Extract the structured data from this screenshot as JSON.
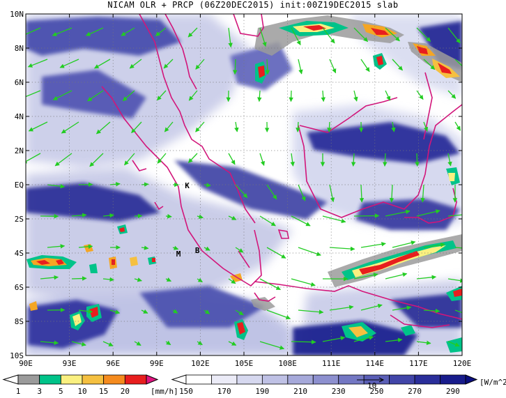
{
  "title": "NICAM OLR + PRCP (06Z20DEC2015) init:00Z19DEC2015 slab",
  "map": {
    "lon_range": [
      90,
      120
    ],
    "lat_range": [
      -10,
      10
    ],
    "x_ticks": [
      "90E",
      "93E",
      "96E",
      "99E",
      "102E",
      "105E",
      "108E",
      "111E",
      "114E",
      "117E",
      "120E"
    ],
    "y_ticks": [
      "10N",
      "8N",
      "6N",
      "4N",
      "2N",
      "EQ",
      "2S",
      "4S",
      "6S",
      "8S",
      "10S"
    ],
    "gridlines": "dotted",
    "markers": [
      {
        "label": "K",
        "lon": 101.1,
        "lat": 0.0
      },
      {
        "label": "M",
        "lon": 100.5,
        "lat": -4.0
      },
      {
        "label": "B",
        "lon": 101.8,
        "lat": -3.8
      }
    ],
    "colors": {
      "coastline": "#d2157a",
      "wind_vector": "#22cc22",
      "olr_dark": "#1a1a8a",
      "olr_light": "#d8dcf0",
      "prcp_red": "#e81e1e",
      "prcp_orange": "#f5a623"
    },
    "vector_reference_label": "10"
  },
  "colorbars": {
    "precip": {
      "unit": "[mm/h]",
      "labels": [
        "1",
        "3",
        "5",
        "10",
        "15",
        "20"
      ],
      "colors": [
        "#9b9b9b",
        "#00c389",
        "#faf080",
        "#f5c040",
        "#f58b1e",
        "#e81e1e",
        "#e0157f"
      ]
    },
    "olr": {
      "unit": "[W/m^2]",
      "labels": [
        "150",
        "170",
        "190",
        "210",
        "230",
        "250",
        "270",
        "290"
      ],
      "colors": [
        "#ffffff",
        "#ebebf7",
        "#d6d8ef",
        "#bfc1e5",
        "#a6a9da",
        "#8d90cf",
        "#7377c3",
        "#5a5eb6",
        "#4145a8",
        "#2a2e9a",
        "#181c8c",
        "#0b0f80"
      ]
    }
  }
}
